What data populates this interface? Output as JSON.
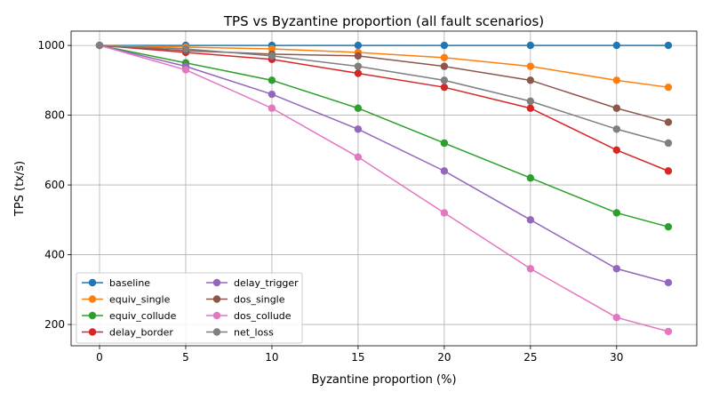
{
  "chart_data": {
    "type": "line",
    "title": "TPS vs Byzantine proportion (all fault scenarios)",
    "xlabel": "Byzantine proportion (%)",
    "ylabel": "TPS (tx/s)",
    "x": [
      0,
      5,
      10,
      15,
      20,
      25,
      30,
      33
    ],
    "xticks": [
      0,
      5,
      10,
      15,
      20,
      25,
      30
    ],
    "yticks": [
      200,
      400,
      600,
      800,
      1000
    ],
    "xlim": [
      -1.65,
      34.65
    ],
    "ylim": [
      139,
      1041
    ],
    "grid": true,
    "legend_position": "lower-left",
    "legend_columns": 2,
    "series": [
      {
        "name": "baseline",
        "color": "#1f77b4",
        "values": [
          1000,
          1000,
          1000,
          1000,
          1000,
          1000,
          1000,
          1000
        ]
      },
      {
        "name": "equiv_single",
        "color": "#ff7f0e",
        "values": [
          1000,
          995,
          990,
          980,
          965,
          940,
          900,
          880
        ]
      },
      {
        "name": "equiv_collude",
        "color": "#2ca02c",
        "values": [
          1000,
          950,
          900,
          820,
          720,
          620,
          520,
          480
        ]
      },
      {
        "name": "delay_border",
        "color": "#d62728",
        "values": [
          1000,
          980,
          960,
          920,
          880,
          820,
          700,
          640
        ]
      },
      {
        "name": "delay_trigger",
        "color": "#9467bd",
        "values": [
          1000,
          940,
          860,
          760,
          640,
          500,
          360,
          320
        ]
      },
      {
        "name": "dos_single",
        "color": "#8c564b",
        "values": [
          1000,
          985,
          975,
          970,
          940,
          900,
          820,
          780
        ]
      },
      {
        "name": "dos_collude",
        "color": "#e377c2",
        "values": [
          1000,
          930,
          820,
          680,
          520,
          360,
          220,
          180
        ]
      },
      {
        "name": "net_loss",
        "color": "#7f7f7f",
        "values": [
          1000,
          990,
          970,
          940,
          900,
          840,
          760,
          720
        ]
      }
    ]
  }
}
